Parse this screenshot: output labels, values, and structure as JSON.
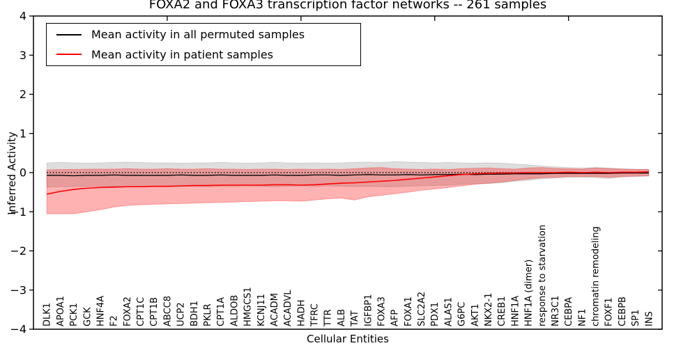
{
  "chart_data": {
    "type": "line",
    "title": "FOXA2 and FOXA3 transcription factor networks -- 261 samples",
    "xlabel": "Cellular Entities",
    "ylabel": "Inferred Activity",
    "ylim": [
      -4,
      4
    ],
    "yticks": [
      -4,
      -3,
      -2,
      -1,
      0,
      1,
      2,
      3,
      4
    ],
    "grid": false,
    "legend_position": "upper left",
    "reference_line": {
      "y": 0,
      "style": "dotted",
      "color": "#000000"
    },
    "categories": [
      "DLK1",
      "APOA1",
      "PCK1",
      "GCK",
      "HNF4A",
      "F2",
      "FOXA2",
      "CPT1C",
      "CPT1B",
      "ABCC8",
      "UCP2",
      "BDH1",
      "PKLR",
      "CPT1A",
      "ALDOB",
      "HMGCS1",
      "KCNJ11",
      "ACADM",
      "ACADVL",
      "HADH",
      "TFRC",
      "TTR",
      "ALB",
      "TAT",
      "IGFBP1",
      "FOXA3",
      "AFP",
      "FOXA1",
      "SLC2A2",
      "PDX1",
      "ALAS1",
      "G6PC",
      "AKT1",
      "NKX2-1",
      "CREB1",
      "HNF1A",
      "HNF1A (dimer)",
      "response to starvation",
      "NR3C1",
      "CEBPA",
      "NF1",
      "chromatin remodeling",
      "FOXF1",
      "CEBPB",
      "SP1",
      "INS"
    ],
    "series": [
      {
        "name": "Mean activity in all permuted samples",
        "color": "#000000",
        "band_fill": "rgba(0,0,0,0.13)",
        "values": [
          -0.07,
          -0.07,
          -0.08,
          -0.07,
          -0.07,
          -0.06,
          -0.07,
          -0.07,
          -0.07,
          -0.07,
          -0.06,
          -0.07,
          -0.07,
          -0.06,
          -0.07,
          -0.07,
          -0.07,
          -0.06,
          -0.07,
          -0.07,
          -0.06,
          -0.06,
          -0.07,
          -0.06,
          -0.05,
          -0.06,
          -0.06,
          -0.05,
          -0.06,
          -0.05,
          -0.05,
          -0.04,
          -0.05,
          -0.04,
          -0.04,
          -0.03,
          -0.03,
          -0.03,
          -0.02,
          -0.02,
          -0.02,
          -0.02,
          -0.02,
          -0.01,
          -0.01,
          -0.01
        ],
        "band_upper": [
          0.25,
          0.26,
          0.25,
          0.24,
          0.25,
          0.26,
          0.27,
          0.26,
          0.25,
          0.25,
          0.24,
          0.25,
          0.25,
          0.26,
          0.25,
          0.24,
          0.25,
          0.26,
          0.25,
          0.24,
          0.25,
          0.24,
          0.25,
          0.26,
          0.27,
          0.26,
          0.28,
          0.27,
          0.26,
          0.25,
          0.26,
          0.25,
          0.24,
          0.25,
          0.24,
          0.22,
          0.2,
          0.17,
          0.15,
          0.13,
          0.12,
          0.13,
          0.12,
          0.1,
          0.09,
          0.08
        ],
        "band_lower": [
          -0.37,
          -0.36,
          -0.36,
          -0.35,
          -0.36,
          -0.35,
          -0.36,
          -0.35,
          -0.35,
          -0.36,
          -0.35,
          -0.35,
          -0.36,
          -0.35,
          -0.35,
          -0.34,
          -0.35,
          -0.36,
          -0.35,
          -0.34,
          -0.35,
          -0.34,
          -0.35,
          -0.36,
          -0.35,
          -0.36,
          -0.36,
          -0.35,
          -0.34,
          -0.33,
          -0.32,
          -0.3,
          -0.28,
          -0.28,
          -0.26,
          -0.22,
          -0.2,
          -0.16,
          -0.14,
          -0.12,
          -0.12,
          -0.13,
          -0.15,
          -0.11,
          -0.1,
          -0.09
        ]
      },
      {
        "name": "Mean activity in patient samples",
        "color": "#ff0000",
        "band_fill": "rgba(255,0,0,0.30)",
        "values": [
          -0.55,
          -0.48,
          -0.43,
          -0.4,
          -0.38,
          -0.37,
          -0.36,
          -0.36,
          -0.35,
          -0.35,
          -0.34,
          -0.33,
          -0.33,
          -0.32,
          -0.32,
          -0.32,
          -0.32,
          -0.31,
          -0.31,
          -0.32,
          -0.31,
          -0.29,
          -0.27,
          -0.26,
          -0.24,
          -0.22,
          -0.2,
          -0.17,
          -0.14,
          -0.11,
          -0.08,
          -0.05,
          -0.03,
          -0.02,
          -0.01,
          -0.01,
          0.0,
          0.0,
          0.0,
          0.01,
          0.0,
          0.01,
          0.0,
          0.01,
          0.01,
          0.02
        ],
        "band_upper": [
          0.07,
          0.08,
          0.08,
          0.09,
          0.09,
          0.09,
          0.1,
          0.09,
          0.09,
          0.1,
          0.09,
          0.09,
          0.1,
          0.09,
          0.09,
          0.08,
          0.09,
          0.09,
          0.08,
          0.09,
          0.08,
          0.09,
          0.08,
          0.1,
          0.12,
          0.13,
          0.1,
          0.09,
          0.08,
          0.09,
          0.08,
          0.1,
          0.11,
          0.12,
          0.1,
          0.09,
          0.12,
          0.13,
          0.11,
          0.1,
          0.09,
          0.12,
          0.1,
          0.09,
          0.08,
          0.08
        ],
        "band_lower": [
          -1.05,
          -1.05,
          -1.05,
          -1.0,
          -0.95,
          -0.88,
          -0.84,
          -0.82,
          -0.81,
          -0.8,
          -0.79,
          -0.78,
          -0.77,
          -0.76,
          -0.75,
          -0.74,
          -0.73,
          -0.72,
          -0.72,
          -0.73,
          -0.7,
          -0.67,
          -0.65,
          -0.7,
          -0.62,
          -0.58,
          -0.54,
          -0.5,
          -0.45,
          -0.42,
          -0.38,
          -0.34,
          -0.3,
          -0.27,
          -0.24,
          -0.2,
          -0.16,
          -0.13,
          -0.12,
          -0.1,
          -0.1,
          -0.1,
          -0.12,
          -0.1,
          -0.09,
          -0.08
        ]
      }
    ]
  }
}
